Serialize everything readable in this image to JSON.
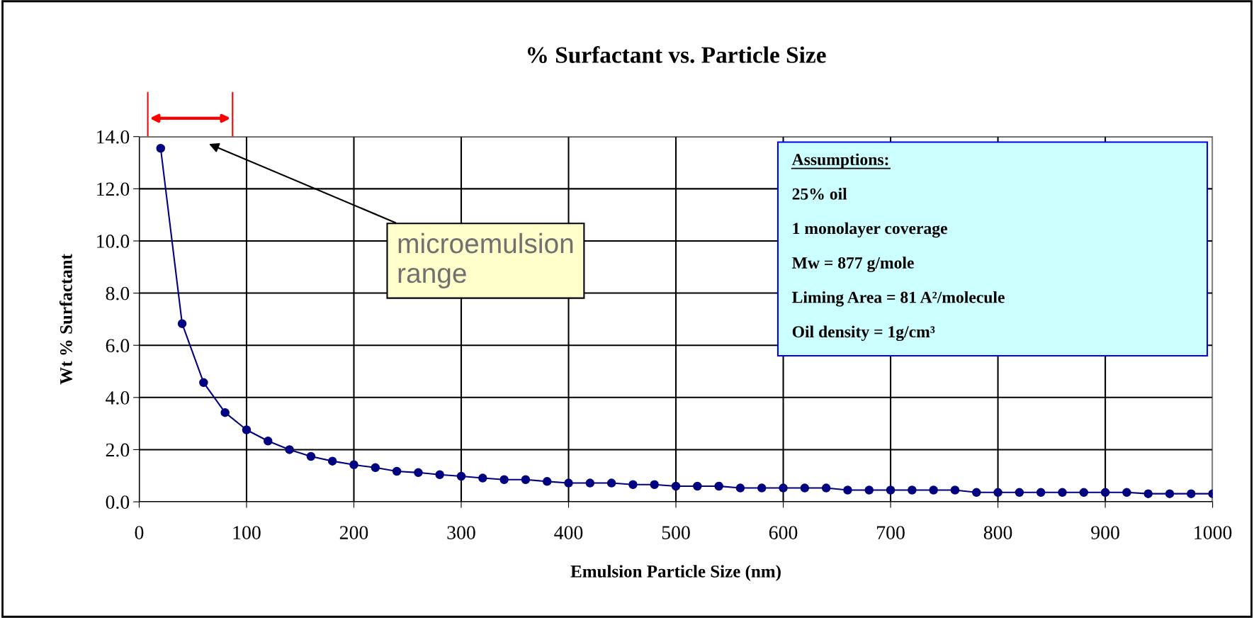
{
  "chart_data": {
    "type": "line",
    "title": "% Surfactant vs. Particle Size",
    "xlabel": "Emulsion Particle Size (nm)",
    "ylabel": "Wt % Surfactant",
    "series": [
      {
        "color": "#000080",
        "x": [
          20,
          40,
          60,
          80,
          100,
          120,
          140,
          160,
          180,
          200,
          220,
          240,
          260,
          280,
          300,
          320,
          340,
          360,
          380,
          400,
          420,
          440,
          460,
          480,
          500,
          520,
          540,
          560,
          580,
          600,
          620,
          640,
          660,
          680,
          700,
          720,
          740,
          760,
          780,
          800,
          820,
          840,
          860,
          880,
          900,
          920,
          940,
          960,
          980,
          1000
        ],
        "values": [
          13.55,
          6.83,
          4.57,
          3.42,
          2.76,
          2.33,
          2.0,
          1.74,
          1.56,
          1.42,
          1.31,
          1.17,
          1.12,
          1.04,
          0.98,
          0.91,
          0.85,
          0.85,
          0.78,
          0.72,
          0.72,
          0.72,
          0.66,
          0.66,
          0.6,
          0.6,
          0.6,
          0.53,
          0.53,
          0.53,
          0.53,
          0.53,
          0.45,
          0.45,
          0.45,
          0.45,
          0.45,
          0.45,
          0.36,
          0.36,
          0.36,
          0.36,
          0.36,
          0.36,
          0.36,
          0.36,
          0.31,
          0.31,
          0.31,
          0.31
        ]
      }
    ],
    "marker": "circle",
    "line_style": "solid",
    "xlim": [
      0,
      1000
    ],
    "xticks": [
      0,
      100,
      200,
      300,
      400,
      500,
      600,
      700,
      800,
      900,
      1000
    ],
    "ylim": [
      0,
      14
    ],
    "yticks": [
      {
        "value": 0,
        "label": "0.0"
      },
      {
        "value": 2,
        "label": "2.0"
      },
      {
        "value": 4,
        "label": "4.0"
      },
      {
        "value": 6,
        "label": "6.0"
      },
      {
        "value": 8,
        "label": "8.0"
      },
      {
        "value": 10,
        "label": "10.0"
      },
      {
        "value": 12,
        "label": "12.0"
      },
      {
        "value": 14,
        "label": "14.0"
      }
    ],
    "grid": true,
    "legend": false,
    "annotations": [
      "microemulsion\nrange",
      "Assumptions:",
      "25% oil",
      "1 monolayer coverage",
      "Mw = 877 g/mole",
      "Liming Area = 81 A²/molecule",
      "Oil density = 1g/cm³"
    ]
  }
}
